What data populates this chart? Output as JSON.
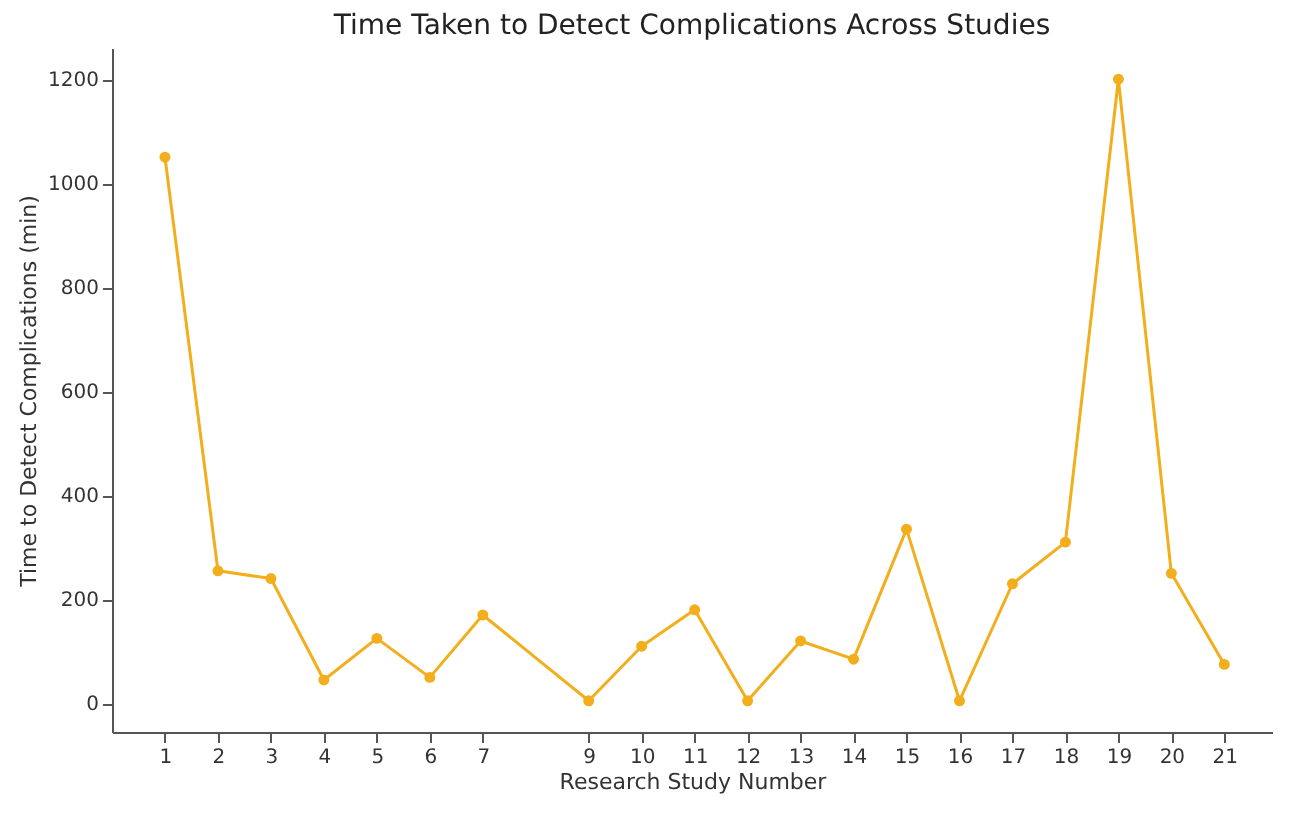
{
  "chart_data": {
    "type": "line",
    "title": "Time Taken to Detect Complications Across Studies",
    "xlabel": "Research Study Number",
    "ylabel": "Time to Detect Complications (min)",
    "x": [
      1,
      2,
      3,
      4,
      5,
      6,
      7,
      9,
      10,
      11,
      12,
      13,
      14,
      15,
      16,
      17,
      18,
      19,
      20,
      21
    ],
    "series": [
      {
        "color": "#f2ae1c",
        "values": [
          1050,
          255,
          240,
          45,
          125,
          50,
          170,
          5,
          110,
          180,
          5,
          120,
          85,
          335,
          5,
          230,
          310,
          1200,
          250,
          75
        ]
      }
    ],
    "xlim": [
      0,
      21.9
    ],
    "xticks": [
      1,
      2,
      3,
      4,
      5,
      6,
      7,
      9,
      10,
      11,
      12,
      13,
      14,
      15,
      16,
      17,
      18,
      19,
      20,
      21
    ],
    "ylim": [
      -55,
      1260
    ],
    "yticks": [
      0,
      200,
      400,
      600,
      800,
      1000,
      1200
    ],
    "grid": false,
    "legend": false,
    "marker": "circle",
    "line_style": "solid"
  }
}
